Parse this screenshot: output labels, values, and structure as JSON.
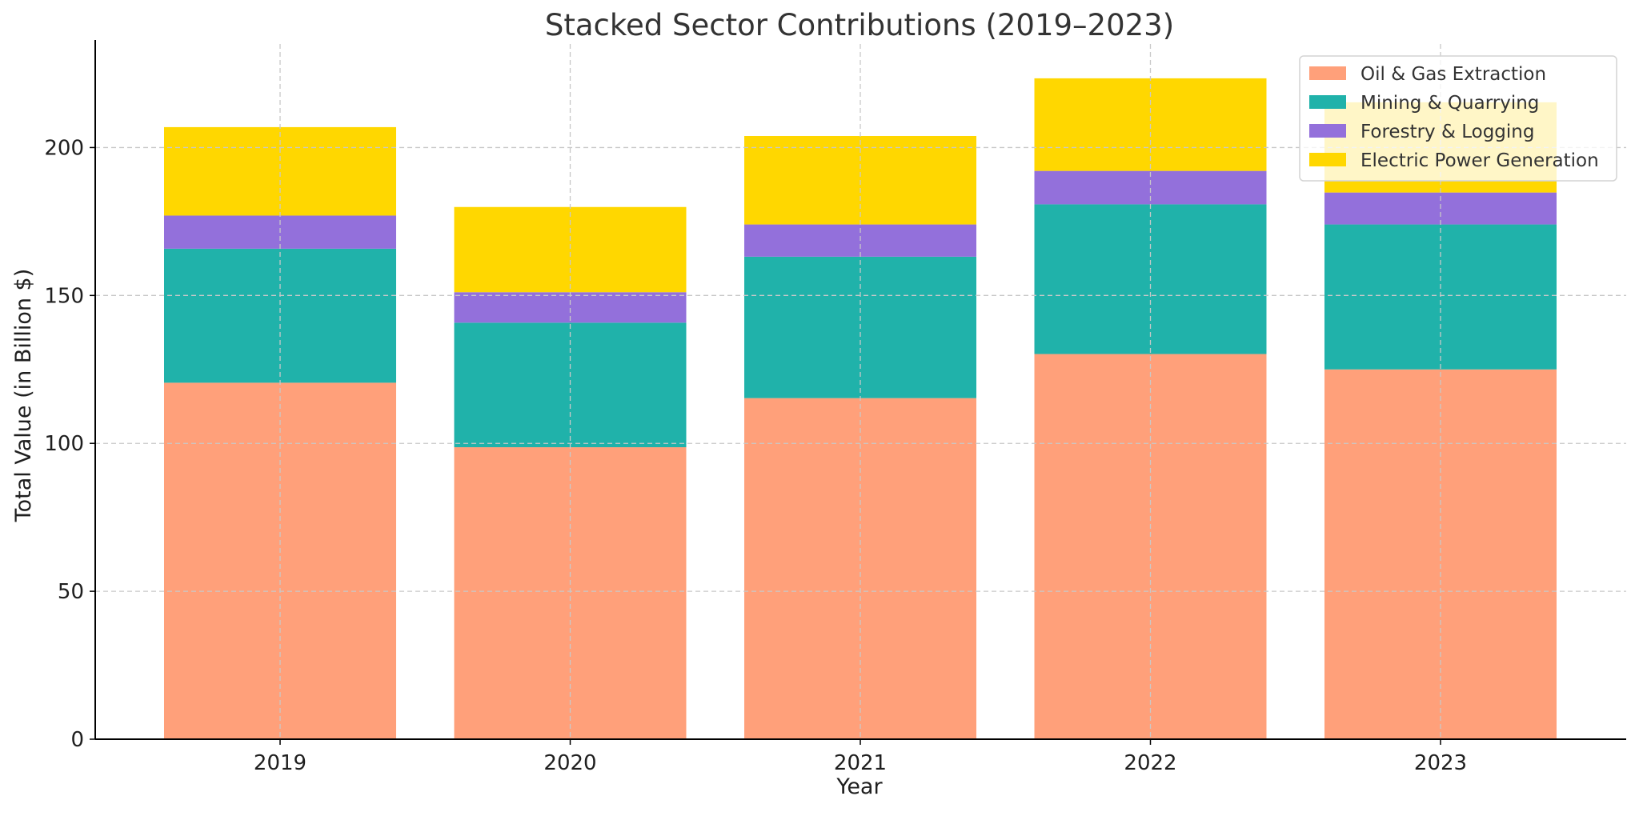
{
  "chart_data": {
    "type": "bar",
    "stacked": true,
    "title": "Stacked Sector Contributions (2019–2023)",
    "xlabel": "Year",
    "ylabel": "Total Value (in Billion $)",
    "categories": [
      "2019",
      "2020",
      "2021",
      "2022",
      "2023"
    ],
    "ylim": [
      0,
      235
    ],
    "yticks": [
      0,
      50,
      100,
      150,
      200
    ],
    "grid": true,
    "legend_position": "top-right",
    "series": [
      {
        "name": "Oil & Gas Extraction",
        "color": "#FFA07A",
        "values": [
          120.5,
          98.7,
          115.3,
          130.2,
          125.0
        ]
      },
      {
        "name": "Mining & Quarrying",
        "color": "#20B2AA",
        "values": [
          45.3,
          42.1,
          47.8,
          50.6,
          49.0
        ]
      },
      {
        "name": "Forestry & Logging",
        "color": "#9370DB",
        "values": [
          11.2,
          10.3,
          10.9,
          11.3,
          10.8
        ]
      },
      {
        "name": "Electric Power Generation",
        "color": "#FFD700",
        "values": [
          29.9,
          28.8,
          29.9,
          31.3,
          30.5
        ]
      }
    ]
  }
}
